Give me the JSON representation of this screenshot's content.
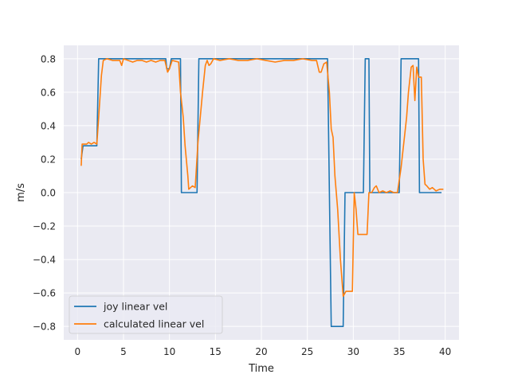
{
  "chart_data": {
    "type": "line",
    "title": "",
    "xlabel": "Time",
    "ylabel": "m/s",
    "xlim": [
      -1.5,
      41.5
    ],
    "ylim": [
      -0.88,
      0.88
    ],
    "xticks": [
      0,
      5,
      10,
      15,
      20,
      25,
      30,
      35,
      40
    ],
    "yticks": [
      -0.8,
      -0.6,
      -0.4,
      -0.2,
      0.0,
      0.2,
      0.4,
      0.6,
      0.8
    ],
    "ytick_labels": [
      "−0.8",
      "−0.6",
      "−0.4",
      "−0.2",
      "0.0",
      "0.2",
      "0.4",
      "0.6",
      "0.8"
    ],
    "grid": true,
    "background": "#eaeaf2",
    "legend_position": "lower-left",
    "series": [
      {
        "name": "joy linear vel",
        "color": "#1f77b4",
        "points": [
          [
            0.4,
            0.2
          ],
          [
            0.6,
            0.28
          ],
          [
            2.1,
            0.28
          ],
          [
            2.3,
            0.8
          ],
          [
            9.6,
            0.8
          ],
          [
            9.7,
            0.74
          ],
          [
            10.0,
            0.74
          ],
          [
            10.2,
            0.8
          ],
          [
            11.2,
            0.8
          ],
          [
            11.3,
            0.0
          ],
          [
            13.0,
            0.0
          ],
          [
            13.2,
            0.8
          ],
          [
            27.2,
            0.8
          ],
          [
            27.4,
            0.0
          ],
          [
            27.6,
            -0.8
          ],
          [
            28.9,
            -0.8
          ],
          [
            29.1,
            0.0
          ],
          [
            31.1,
            0.0
          ],
          [
            31.3,
            0.8
          ],
          [
            31.7,
            0.8
          ],
          [
            31.8,
            0.0
          ],
          [
            35.0,
            0.0
          ],
          [
            35.2,
            0.8
          ],
          [
            37.1,
            0.8
          ],
          [
            37.2,
            0.0
          ],
          [
            39.6,
            0.0
          ]
        ]
      },
      {
        "name": "calculated linear vel",
        "color": "#ff7f0e",
        "points": [
          [
            0.4,
            0.16
          ],
          [
            0.5,
            0.29
          ],
          [
            0.8,
            0.29
          ],
          [
            1.0,
            0.29
          ],
          [
            1.2,
            0.3
          ],
          [
            1.5,
            0.29
          ],
          [
            1.8,
            0.3
          ],
          [
            2.1,
            0.29
          ],
          [
            2.3,
            0.45
          ],
          [
            2.6,
            0.7
          ],
          [
            2.8,
            0.79
          ],
          [
            3.2,
            0.8
          ],
          [
            3.8,
            0.79
          ],
          [
            4.2,
            0.79
          ],
          [
            4.6,
            0.79
          ],
          [
            4.8,
            0.76
          ],
          [
            5.0,
            0.8
          ],
          [
            5.5,
            0.79
          ],
          [
            6.0,
            0.78
          ],
          [
            6.5,
            0.79
          ],
          [
            7.0,
            0.79
          ],
          [
            7.5,
            0.78
          ],
          [
            8.0,
            0.79
          ],
          [
            8.5,
            0.78
          ],
          [
            9.0,
            0.79
          ],
          [
            9.5,
            0.79
          ],
          [
            9.8,
            0.72
          ],
          [
            10.0,
            0.74
          ],
          [
            10.3,
            0.79
          ],
          [
            11.0,
            0.78
          ],
          [
            11.2,
            0.6
          ],
          [
            11.5,
            0.45
          ],
          [
            11.7,
            0.28
          ],
          [
            12.0,
            0.1
          ],
          [
            12.1,
            0.02
          ],
          [
            12.3,
            0.03
          ],
          [
            12.5,
            0.04
          ],
          [
            12.8,
            0.03
          ],
          [
            13.1,
            0.3
          ],
          [
            13.3,
            0.42
          ],
          [
            13.6,
            0.6
          ],
          [
            13.9,
            0.76
          ],
          [
            14.1,
            0.79
          ],
          [
            14.3,
            0.76
          ],
          [
            14.5,
            0.77
          ],
          [
            14.8,
            0.8
          ],
          [
            15.5,
            0.79
          ],
          [
            16.5,
            0.8
          ],
          [
            17.5,
            0.79
          ],
          [
            18.5,
            0.79
          ],
          [
            19.5,
            0.8
          ],
          [
            20.5,
            0.79
          ],
          [
            21.5,
            0.78
          ],
          [
            22.5,
            0.79
          ],
          [
            23.5,
            0.79
          ],
          [
            24.5,
            0.8
          ],
          [
            25.5,
            0.79
          ],
          [
            26.0,
            0.79
          ],
          [
            26.3,
            0.72
          ],
          [
            26.5,
            0.72
          ],
          [
            26.8,
            0.77
          ],
          [
            27.1,
            0.78
          ],
          [
            27.4,
            0.6
          ],
          [
            27.6,
            0.38
          ],
          [
            27.8,
            0.33
          ],
          [
            28.0,
            0.1
          ],
          [
            28.3,
            -0.1
          ],
          [
            28.6,
            -0.4
          ],
          [
            28.9,
            -0.62
          ],
          [
            29.2,
            -0.59
          ],
          [
            29.6,
            -0.59
          ],
          [
            29.9,
            -0.59
          ],
          [
            30.1,
            0.0
          ],
          [
            30.3,
            -0.1
          ],
          [
            30.5,
            -0.25
          ],
          [
            31.3,
            -0.25
          ],
          [
            31.5,
            -0.25
          ],
          [
            31.7,
            0.0
          ],
          [
            32.0,
            0.0
          ],
          [
            32.3,
            0.03
          ],
          [
            32.5,
            0.04
          ],
          [
            32.8,
            0.0
          ],
          [
            33.2,
            0.01
          ],
          [
            33.6,
            0.0
          ],
          [
            34.0,
            0.01
          ],
          [
            34.4,
            0.0
          ],
          [
            34.8,
            0.0
          ],
          [
            35.2,
            0.15
          ],
          [
            35.5,
            0.3
          ],
          [
            35.8,
            0.45
          ],
          [
            36.0,
            0.6
          ],
          [
            36.3,
            0.75
          ],
          [
            36.5,
            0.76
          ],
          [
            36.7,
            0.55
          ],
          [
            36.9,
            0.75
          ],
          [
            37.1,
            0.69
          ],
          [
            37.4,
            0.69
          ],
          [
            37.6,
            0.2
          ],
          [
            37.8,
            0.05
          ],
          [
            38.0,
            0.04
          ],
          [
            38.3,
            0.02
          ],
          [
            38.6,
            0.03
          ],
          [
            39.0,
            0.01
          ],
          [
            39.4,
            0.02
          ],
          [
            39.8,
            0.02
          ]
        ]
      }
    ]
  }
}
